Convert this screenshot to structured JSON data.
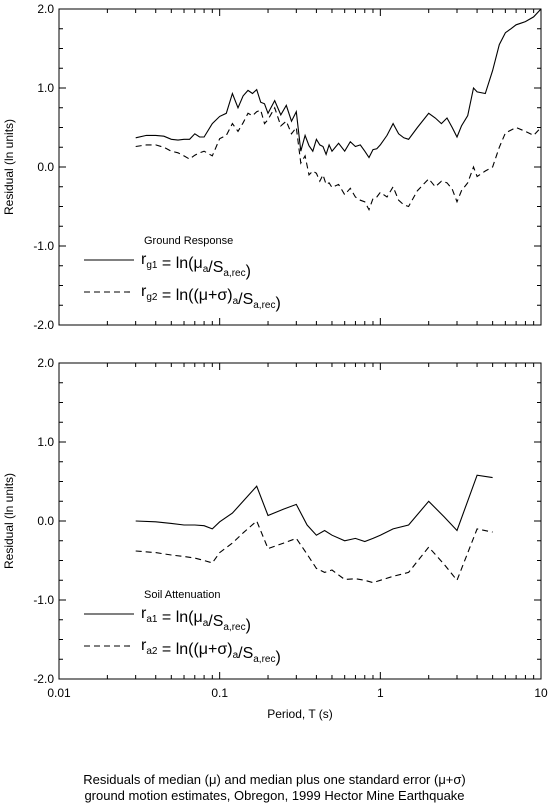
{
  "chart_data": [
    {
      "type": "line",
      "panel_title": "Ground Response",
      "ylabel": "Residual (ln units)",
      "xlabel": "",
      "xscale": "log",
      "xlim": [
        0.01,
        10
      ],
      "ylim": [
        -2.0,
        2.0
      ],
      "x_ticks": [
        "0.01",
        "0.1",
        "1",
        "10"
      ],
      "y_ticks": [
        "-2.0",
        "-1.0",
        "0.0",
        "1.0",
        "2.0"
      ],
      "grid": false,
      "legend_position": "lower-left",
      "series": [
        {
          "name": "r_g1 = ln(μa/Sa,rec)",
          "legend": {
            "base": "r",
            "sub": "g1",
            "eq": " = ln(",
            "m1": "μ",
            "s1": "a",
            "slash": "/S",
            "s2": "a,rec",
            "close": ")"
          },
          "style": "solid",
          "x": [
            0.03,
            0.035,
            0.04,
            0.045,
            0.05,
            0.055,
            0.06,
            0.065,
            0.07,
            0.075,
            0.08,
            0.09,
            0.1,
            0.11,
            0.12,
            0.13,
            0.14,
            0.15,
            0.16,
            0.17,
            0.18,
            0.19,
            0.2,
            0.22,
            0.24,
            0.26,
            0.28,
            0.3,
            0.32,
            0.34,
            0.36,
            0.38,
            0.4,
            0.42,
            0.44,
            0.46,
            0.48,
            0.5,
            0.55,
            0.6,
            0.65,
            0.7,
            0.75,
            0.8,
            0.85,
            0.9,
            0.95,
            1.0,
            1.1,
            1.2,
            1.3,
            1.4,
            1.5,
            1.7,
            2.0,
            2.2,
            2.4,
            2.6,
            2.8,
            3.0,
            3.2,
            3.5,
            3.8,
            4.0,
            4.5,
            5.0,
            5.5,
            6.0,
            6.5,
            7.0,
            7.5,
            8.0,
            9.0,
            10.0
          ],
          "y": [
            0.37,
            0.4,
            0.4,
            0.39,
            0.35,
            0.34,
            0.35,
            0.35,
            0.42,
            0.38,
            0.38,
            0.55,
            0.64,
            0.68,
            0.93,
            0.75,
            0.9,
            0.97,
            0.93,
            0.98,
            0.82,
            0.8,
            0.68,
            0.84,
            0.66,
            0.78,
            0.58,
            0.7,
            0.2,
            0.4,
            0.27,
            0.2,
            0.35,
            0.28,
            0.26,
            0.16,
            0.28,
            0.2,
            0.3,
            0.2,
            0.32,
            0.26,
            0.28,
            0.2,
            0.12,
            0.22,
            0.23,
            0.28,
            0.4,
            0.55,
            0.42,
            0.37,
            0.35,
            0.5,
            0.68,
            0.62,
            0.55,
            0.62,
            0.5,
            0.38,
            0.52,
            0.65,
            1.0,
            0.95,
            0.93,
            1.22,
            1.55,
            1.7,
            1.75,
            1.8,
            1.82,
            1.84,
            1.9,
            2.0
          ]
        },
        {
          "name": "r_g2 = ln((μ+σ)a/Sa,rec)",
          "legend": {
            "base": "r",
            "sub": "g2",
            "eq": " = ln((",
            "m1": "μ+σ",
            "p2": ")",
            "s1": "a",
            "slash": "/S",
            "s2": "a,rec",
            "close": ")"
          },
          "style": "dashed",
          "x": [
            0.03,
            0.035,
            0.04,
            0.045,
            0.05,
            0.055,
            0.06,
            0.065,
            0.07,
            0.075,
            0.08,
            0.09,
            0.1,
            0.11,
            0.12,
            0.13,
            0.14,
            0.15,
            0.16,
            0.17,
            0.18,
            0.19,
            0.2,
            0.22,
            0.24,
            0.26,
            0.28,
            0.3,
            0.32,
            0.34,
            0.36,
            0.38,
            0.4,
            0.42,
            0.44,
            0.46,
            0.48,
            0.5,
            0.55,
            0.6,
            0.65,
            0.7,
            0.75,
            0.8,
            0.85,
            0.9,
            0.95,
            1.0,
            1.1,
            1.2,
            1.3,
            1.4,
            1.5,
            1.7,
            2.0,
            2.2,
            2.4,
            2.6,
            2.8,
            3.0,
            3.2,
            3.5,
            3.8,
            4.0,
            4.5,
            5.0,
            5.5,
            6.0,
            7.0,
            8.0,
            9.0,
            10.0
          ],
          "y": [
            0.26,
            0.28,
            0.28,
            0.25,
            0.2,
            0.18,
            0.14,
            0.1,
            0.15,
            0.18,
            0.2,
            0.14,
            0.36,
            0.4,
            0.55,
            0.45,
            0.56,
            0.68,
            0.65,
            0.7,
            0.72,
            0.55,
            0.6,
            0.75,
            0.52,
            0.58,
            0.42,
            0.5,
            0.05,
            0.14,
            -0.1,
            -0.05,
            -0.08,
            -0.18,
            -0.1,
            -0.22,
            -0.2,
            -0.26,
            -0.22,
            -0.35,
            -0.27,
            -0.38,
            -0.42,
            -0.44,
            -0.54,
            -0.4,
            -0.38,
            -0.32,
            -0.38,
            -0.25,
            -0.42,
            -0.48,
            -0.5,
            -0.3,
            -0.15,
            -0.25,
            -0.18,
            -0.2,
            -0.28,
            -0.44,
            -0.3,
            -0.2,
            0.0,
            -0.12,
            -0.05,
            0.0,
            0.25,
            0.43,
            0.5,
            0.45,
            0.4,
            0.5
          ]
        }
      ]
    },
    {
      "type": "line",
      "panel_title": "Soil Attenuation",
      "ylabel": "Residual (ln units)",
      "xlabel": "Period, T (s)",
      "xscale": "log",
      "xlim": [
        0.01,
        10
      ],
      "ylim": [
        -2.0,
        2.0
      ],
      "x_ticks": [
        "0.01",
        "0.1",
        "1",
        "10"
      ],
      "y_ticks": [
        "-2.0",
        "-1.0",
        "0.0",
        "1.0",
        "2.0"
      ],
      "grid": false,
      "legend_position": "lower-left",
      "series": [
        {
          "name": "r_a1 = ln(μa/Sa,rec)",
          "legend": {
            "base": "r",
            "sub": "a1",
            "eq": " = ln(",
            "m1": "μ",
            "s1": "a",
            "slash": "/S",
            "s2": "a,rec",
            "close": ")"
          },
          "style": "solid",
          "x": [
            0.03,
            0.04,
            0.05,
            0.06,
            0.07,
            0.08,
            0.09,
            0.1,
            0.12,
            0.14,
            0.17,
            0.2,
            0.25,
            0.3,
            0.35,
            0.4,
            0.45,
            0.5,
            0.6,
            0.7,
            0.8,
            0.9,
            1.0,
            1.2,
            1.5,
            2.0,
            2.5,
            3.0,
            4.0,
            5.0
          ],
          "y": [
            0.0,
            -0.01,
            -0.03,
            -0.05,
            -0.05,
            -0.06,
            -0.1,
            -0.01,
            0.1,
            0.25,
            0.44,
            0.07,
            0.15,
            0.21,
            -0.05,
            -0.18,
            -0.12,
            -0.18,
            -0.25,
            -0.22,
            -0.26,
            -0.22,
            -0.18,
            -0.1,
            -0.05,
            0.25,
            0.05,
            -0.12,
            0.58,
            0.55
          ]
        },
        {
          "name": "r_a2 = ln((μ+σ)a/Sa,rec)",
          "legend": {
            "base": "r",
            "sub": "a2",
            "eq": " = ln((",
            "m1": "μ+σ",
            "p2": ")",
            "s1": "a",
            "slash": "/S",
            "s2": "a,rec",
            "close": ")"
          },
          "style": "dashed",
          "x": [
            0.03,
            0.04,
            0.05,
            0.06,
            0.07,
            0.08,
            0.09,
            0.1,
            0.12,
            0.14,
            0.17,
            0.2,
            0.25,
            0.3,
            0.35,
            0.4,
            0.45,
            0.5,
            0.6,
            0.7,
            0.8,
            0.9,
            1.0,
            1.2,
            1.5,
            2.0,
            2.5,
            3.0,
            4.0,
            5.0
          ],
          "y": [
            -0.38,
            -0.4,
            -0.43,
            -0.45,
            -0.47,
            -0.5,
            -0.53,
            -0.4,
            -0.28,
            -0.15,
            0.0,
            -0.35,
            -0.28,
            -0.22,
            -0.42,
            -0.6,
            -0.65,
            -0.62,
            -0.74,
            -0.73,
            -0.75,
            -0.78,
            -0.75,
            -0.7,
            -0.65,
            -0.33,
            -0.55,
            -0.75,
            -0.1,
            -0.14
          ]
        }
      ]
    }
  ],
  "caption": {
    "line1": "Residuals of median (μ) and median plus one standard error (μ+σ)",
    "line2": "ground motion estimates, Obregon, 1999 Hector Mine Earthquake"
  }
}
